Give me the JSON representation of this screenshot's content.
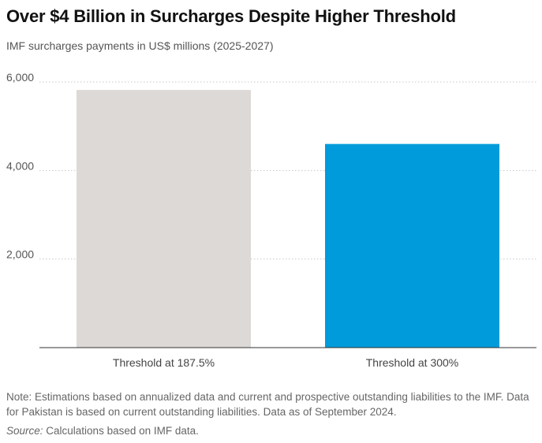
{
  "chart_data": {
    "type": "bar",
    "title": "Over $4 Billion in Surcharges Despite Higher Threshold",
    "subtitle": "IMF surcharges payments in US$ millions (2025-2027)",
    "categories": [
      "Threshold at 187.5%",
      "Threshold at 300%"
    ],
    "values": [
      5820,
      4600
    ],
    "ylim": [
      0,
      6000
    ],
    "yticks": [
      2000,
      4000,
      6000
    ],
    "ytick_labels": [
      "2,000",
      "4,000",
      "6,000"
    ],
    "xlabel": "",
    "ylabel": "",
    "grid": "horizontal dotted",
    "legend": "none"
  },
  "colors": {
    "bar_1": "#ddd9d6",
    "bar_2": "#009bda",
    "gridline": "#c8c8c8",
    "baseline": "#333333"
  },
  "footer": {
    "note": "Note: Estimations based on annualized data and current and prospective outstanding liabilities to the IMF. Data for Pakistan is based on current outstanding liabilities. Data as of September 2024.",
    "source_label": "Source:",
    "source_text": " Calculations based on IMF data."
  }
}
